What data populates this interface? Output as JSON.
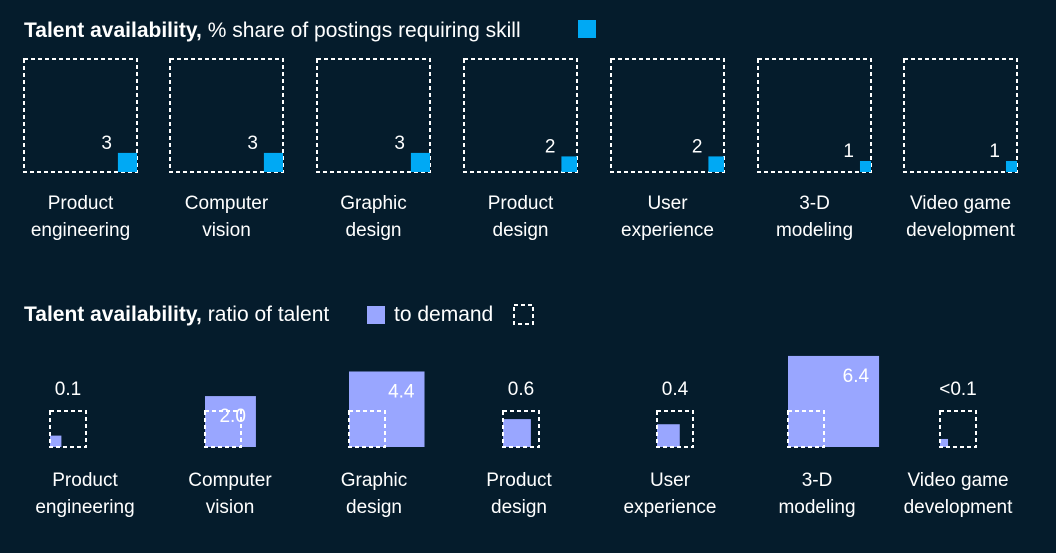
{
  "colors": {
    "background": "#051c2c",
    "share_fill": "#00a9f4",
    "talent_fill": "#99a6ff",
    "demand_outline": "#ffffff"
  },
  "chart_data": [
    {
      "type": "area",
      "title_bold": "Talent availability,",
      "title_rest": "% share of postings requiring skill",
      "categories": [
        [
          "Product",
          "engineering"
        ],
        [
          "Computer",
          "vision"
        ],
        [
          "Graphic",
          "design"
        ],
        [
          "Product",
          "design"
        ],
        [
          "User",
          "experience"
        ],
        [
          "3-D",
          "modeling"
        ],
        [
          "Video game",
          "development"
        ]
      ],
      "values": [
        3,
        3,
        3,
        2,
        2,
        1,
        1
      ],
      "value_labels": [
        "3",
        "3",
        "3",
        "2",
        "2",
        "1",
        "1"
      ]
    },
    {
      "type": "area",
      "title_bold": "Talent availability,",
      "title_mid": "ratio of talent",
      "title_end": "to demand",
      "categories": [
        [
          "Product",
          "engineering"
        ],
        [
          "Computer",
          "vision"
        ],
        [
          "Graphic",
          "design"
        ],
        [
          "Product",
          "design"
        ],
        [
          "User",
          "experience"
        ],
        [
          "3-D",
          "modeling"
        ],
        [
          "Video game",
          "development"
        ]
      ],
      "values": [
        0.1,
        2.0,
        4.4,
        0.6,
        0.4,
        6.4,
        0.05
      ],
      "value_labels": [
        "0.1",
        "2.0",
        "4.4",
        "0.6",
        "0.4",
        "6.4",
        "<0.1"
      ]
    }
  ]
}
